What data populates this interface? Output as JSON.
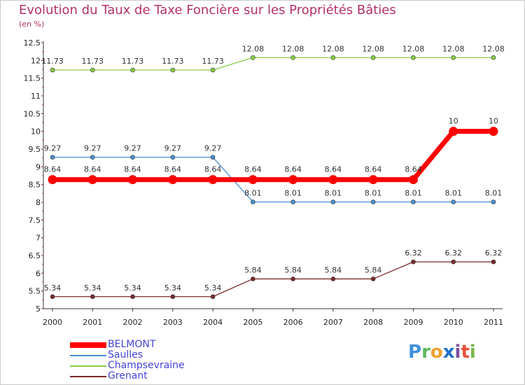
{
  "title": "Evolution du Taux de Taxe Foncière sur les Propriétés Bâties",
  "unit": "(en %)",
  "logo": {
    "l1": "P",
    "l2": "r",
    "l3": "o",
    "l4": "x",
    "l5": "i",
    "l6": "t",
    "l7": "i"
  },
  "chart_data": {
    "type": "line",
    "title": "Evolution du Taux de Taxe Foncière sur les Propriétés Bâties",
    "ylabel": "(en %)",
    "xlabel": "",
    "ylim": [
      5,
      12.5
    ],
    "y_ticks": [
      "5",
      "5.5",
      "6",
      "6.5",
      "7",
      "7.5",
      "8",
      "8.5",
      "9",
      "9.5",
      "10",
      "10.5",
      "11",
      "11.5",
      "12",
      "12.5"
    ],
    "categories": [
      "2000",
      "2001",
      "2002",
      "2003",
      "2004",
      "2005",
      "2006",
      "2007",
      "2008",
      "2009",
      "2010",
      "2011"
    ],
    "legend_position": "bottom-left",
    "series": [
      {
        "name": "Champsevraine",
        "color": "#88cc44",
        "values": [
          11.73,
          11.73,
          11.73,
          11.73,
          11.73,
          12.08,
          12.08,
          12.08,
          12.08,
          12.08,
          12.08,
          12.08
        ],
        "labels": [
          "11.73",
          "11.73",
          "11.73",
          "11.73",
          "11.73",
          "12.08",
          "12.08",
          "12.08",
          "12.08",
          "12.08",
          "12.08",
          "12.08"
        ]
      },
      {
        "name": "Saulles",
        "color": "#4a8fd0",
        "values": [
          9.27,
          9.27,
          9.27,
          9.27,
          9.27,
          8.01,
          8.01,
          8.01,
          8.01,
          8.01,
          8.01,
          8.01
        ],
        "labels": [
          "9.27",
          "9.27",
          "9.27",
          "9.27",
          "9.27",
          "8.01",
          "8.01",
          "8.01",
          "8.01",
          "8.01",
          "8.01",
          "8.01"
        ]
      },
      {
        "name": "BELMONT",
        "color": "#ff0000",
        "values": [
          8.64,
          8.64,
          8.64,
          8.64,
          8.64,
          8.64,
          8.64,
          8.64,
          8.64,
          8.64,
          10,
          10
        ],
        "labels": [
          "8.64",
          "8.64",
          "8.64",
          "8.64",
          "8.64",
          "8.64",
          "8.64",
          "8.64",
          "8.64",
          "8.64",
          "10",
          "10"
        ]
      },
      {
        "name": "Grenant",
        "color": "#7a2a2a",
        "values": [
          5.34,
          5.34,
          5.34,
          5.34,
          5.34,
          5.84,
          5.84,
          5.84,
          5.84,
          6.32,
          6.32,
          6.32
        ],
        "labels": [
          "5.34",
          "5.34",
          "5.34",
          "5.34",
          "5.34",
          "5.84",
          "5.84",
          "5.84",
          "5.84",
          "6.32",
          "6.32",
          "6.32"
        ]
      }
    ],
    "legend": [
      "BELMONT",
      "Saulles",
      "Champsevraine",
      "Grenant"
    ]
  }
}
